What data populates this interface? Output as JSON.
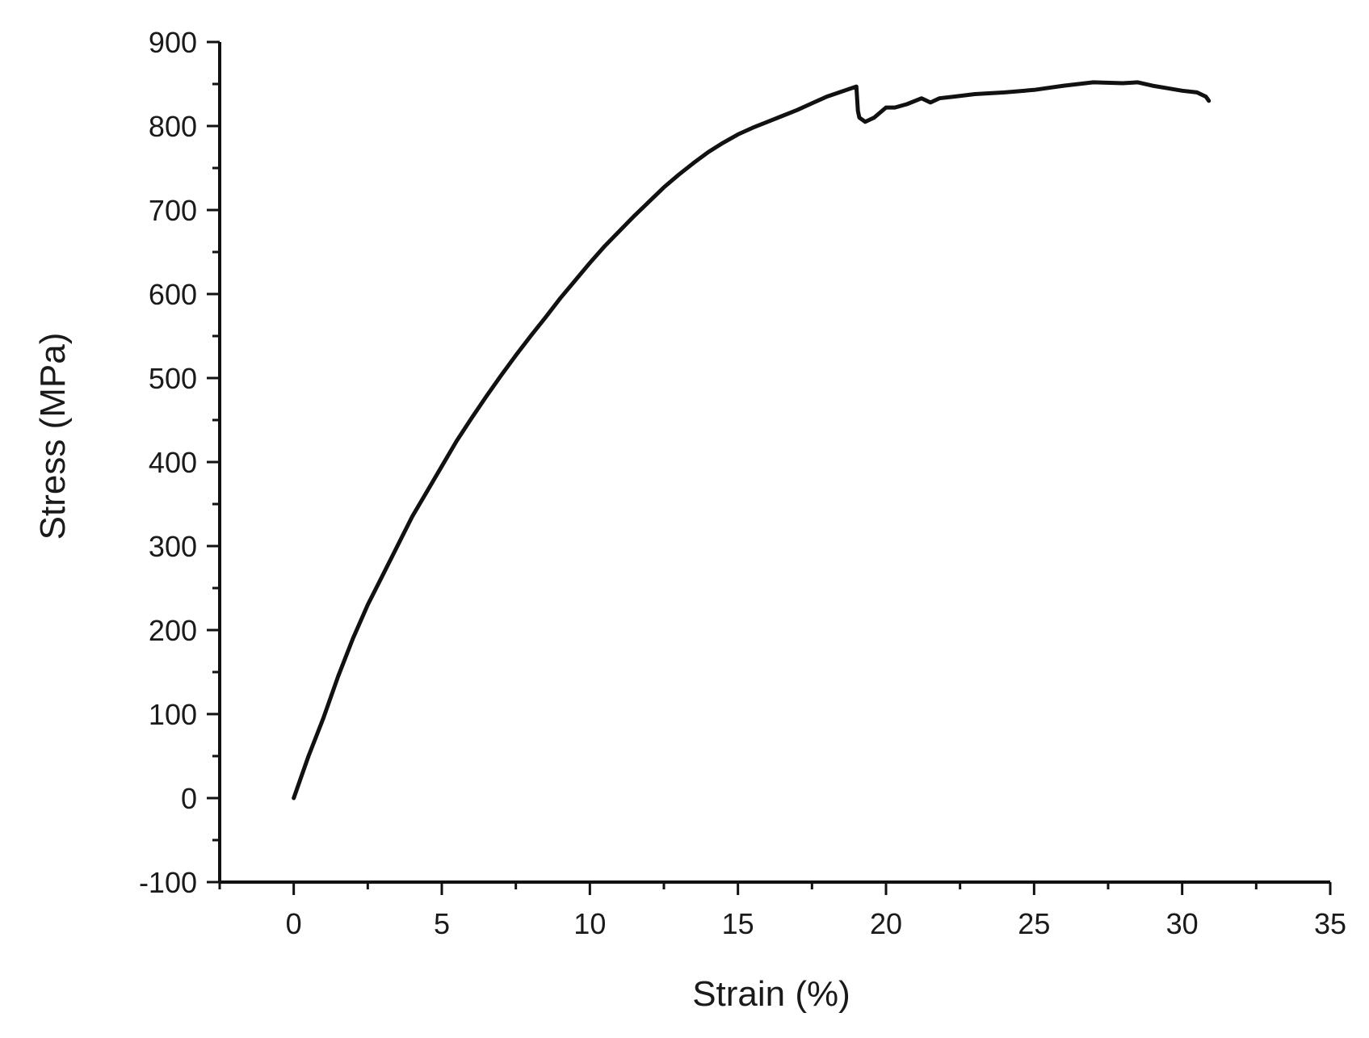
{
  "chart_data": {
    "type": "line",
    "title": "",
    "xlabel": "Strain (%)",
    "ylabel": "Stress (MPa)",
    "xlim": [
      -2.5,
      35
    ],
    "ylim": [
      -100,
      900
    ],
    "x_ticks": [
      0,
      5,
      10,
      15,
      20,
      25,
      30,
      35
    ],
    "y_ticks": [
      -100,
      0,
      100,
      200,
      300,
      400,
      500,
      600,
      700,
      800,
      900
    ],
    "x_minor_step": 2.5,
    "y_minor_step": 50,
    "grid": false,
    "legend": "none",
    "line_color": "#111111",
    "series": [
      {
        "x": [
          0,
          0.5,
          1,
          1.5,
          2,
          2.5,
          3,
          3.5,
          4,
          4.5,
          5,
          5.5,
          6,
          6.5,
          7,
          7.5,
          8,
          8.5,
          9,
          9.5,
          10,
          10.5,
          11,
          11.5,
          12,
          12.5,
          13,
          13.5,
          14,
          14.5,
          15,
          15.5,
          16,
          16.5,
          17,
          17.5,
          18,
          18.5,
          19.0,
          19.05,
          19.1,
          19.3,
          19.6,
          20.0,
          20.3,
          20.7,
          21.2,
          21.5,
          21.8,
          22.3,
          23,
          24,
          25,
          26,
          27,
          28,
          28.5,
          29,
          29.5,
          30,
          30.5,
          30.8,
          30.9
        ],
        "y": [
          0,
          50,
          95,
          145,
          190,
          230,
          265,
          300,
          335,
          365,
          395,
          425,
          452,
          478,
          503,
          527,
          550,
          572,
          595,
          616,
          637,
          657,
          675,
          693,
          710,
          727,
          742,
          756,
          769,
          780,
          790,
          798,
          805,
          812,
          819,
          827,
          835,
          841,
          847,
          818,
          810,
          805,
          810,
          822,
          822,
          826,
          833,
          828,
          833,
          835,
          838,
          840,
          843,
          848,
          852,
          851,
          852,
          848,
          845,
          842,
          840,
          835,
          830
        ]
      }
    ]
  }
}
